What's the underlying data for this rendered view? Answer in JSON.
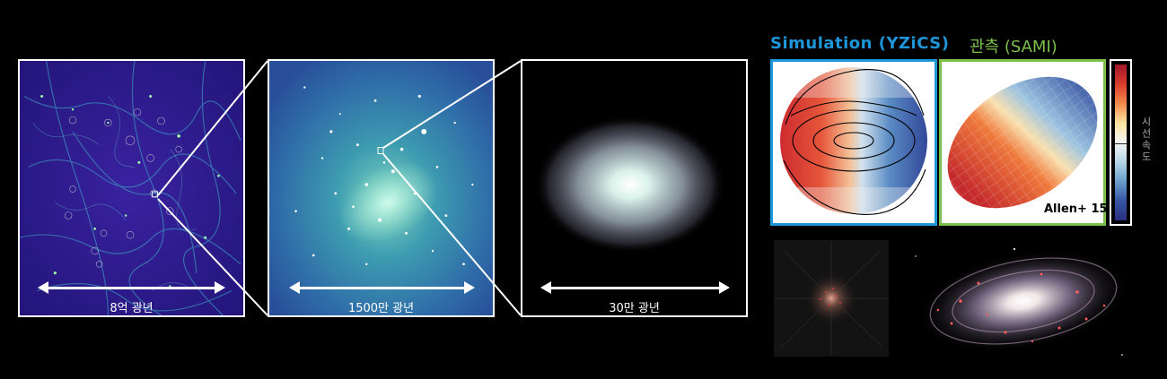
{
  "panels": [
    {
      "scale_label": "8억 광년"
    },
    {
      "scale_label": "1500만 광년"
    },
    {
      "scale_label": "30만 광년"
    }
  ],
  "comparison": {
    "simulation_title": "Simulation (YZiCS)",
    "observation_title": "관측 (SAMI)",
    "colorbar_label": "시선속도",
    "citation": "Allen+ 15"
  },
  "colors": {
    "simulation_frame": "#1e96d8",
    "observation_frame": "#7cc04a",
    "cosmic_web_bg": "#2a1a8c",
    "cluster_bg": "#2d68a8"
  }
}
